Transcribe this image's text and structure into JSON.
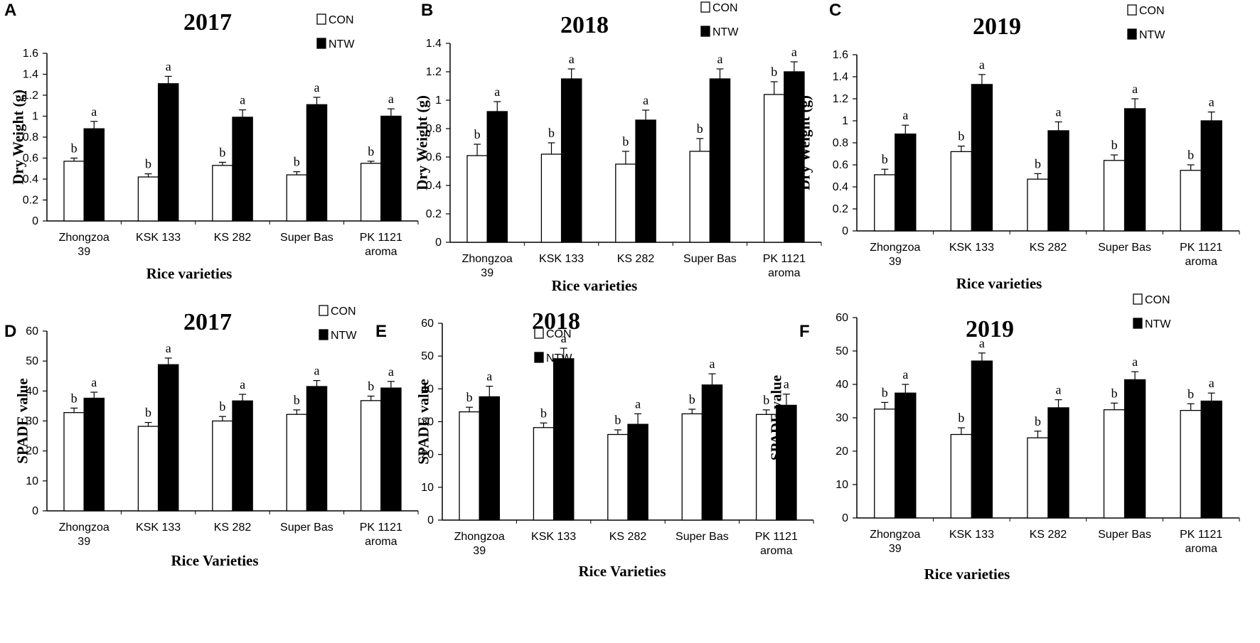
{
  "chart_data": [
    {
      "panel": "A",
      "type": "bar",
      "title": "2017",
      "xlabel": "Rice varieties",
      "ylabel": "Dry Weight (g)",
      "ylim": [
        0,
        1.6
      ],
      "yticks": [
        "0",
        "0.2",
        "0.4",
        "0.6",
        "0.8",
        "1",
        "1.2",
        "1.4",
        "1.6"
      ],
      "categories": [
        [
          "Zhongzoa",
          "39"
        ],
        [
          "KSK 133"
        ],
        [
          "KS 282"
        ],
        [
          "Super Bas"
        ],
        [
          "PK 1121",
          "aroma"
        ]
      ],
      "series": [
        {
          "name": "CON",
          "color": "#ffffff",
          "values": [
            0.57,
            0.42,
            0.53,
            0.44,
            0.55
          ],
          "errors": [
            0.03,
            0.03,
            0.03,
            0.03,
            0.02
          ],
          "labels": [
            "b",
            "b",
            "b",
            "b",
            "b"
          ]
        },
        {
          "name": "NTW",
          "color": "#000000",
          "values": [
            0.88,
            1.31,
            0.99,
            1.11,
            1.0
          ],
          "errors": [
            0.07,
            0.07,
            0.07,
            0.07,
            0.07
          ],
          "labels": [
            "a",
            "a",
            "a",
            "a",
            "a"
          ]
        }
      ],
      "legend_position": "top-right"
    },
    {
      "panel": "B",
      "type": "bar",
      "title": "2018",
      "xlabel": "Rice varieties",
      "ylabel": "Dry Weight (g)",
      "ylim": [
        0,
        1.4
      ],
      "yticks": [
        "0",
        "0.2",
        "0.4",
        "0.6",
        "0.8",
        "1",
        "1.2",
        "1.4"
      ],
      "categories": [
        [
          "Zhongzoa",
          "39"
        ],
        [
          "KSK 133"
        ],
        [
          "KS 282"
        ],
        [
          "Super Bas"
        ],
        [
          "PK 1121",
          "aroma"
        ]
      ],
      "series": [
        {
          "name": "CON",
          "color": "#ffffff",
          "values": [
            0.61,
            0.62,
            0.55,
            0.64,
            1.04
          ],
          "errors": [
            0.08,
            0.08,
            0.09,
            0.09,
            0.09
          ],
          "labels": [
            "b",
            "b",
            "b",
            "b",
            "b"
          ]
        },
        {
          "name": "NTW",
          "color": "#000000",
          "values": [
            0.92,
            1.15,
            0.86,
            1.15,
            1.2
          ],
          "errors": [
            0.07,
            0.07,
            0.07,
            0.07,
            0.07
          ],
          "labels": [
            "a",
            "a",
            "a",
            "a",
            "a"
          ]
        }
      ],
      "legend_position": "top-right"
    },
    {
      "panel": "C",
      "type": "bar",
      "title": "2019",
      "xlabel": "Rice varieties",
      "ylabel": "Dry Weight (g)",
      "ylim": [
        0,
        1.6
      ],
      "yticks": [
        "0",
        "0.2",
        "0.4",
        "0.6",
        "0.8",
        "1",
        "1.2",
        "1.4",
        "1.6"
      ],
      "categories": [
        [
          "Zhongzoa",
          "39"
        ],
        [
          "KSK 133"
        ],
        [
          "KS 282"
        ],
        [
          "Super Bas"
        ],
        [
          "PK 1121",
          "aroma"
        ]
      ],
      "series": [
        {
          "name": "CON",
          "color": "#ffffff",
          "values": [
            0.51,
            0.72,
            0.47,
            0.64,
            0.55
          ],
          "errors": [
            0.05,
            0.05,
            0.05,
            0.05,
            0.05
          ],
          "labels": [
            "b",
            "b",
            "b",
            "b",
            "b"
          ]
        },
        {
          "name": "NTW",
          "color": "#000000",
          "values": [
            0.88,
            1.33,
            0.91,
            1.11,
            1.0
          ],
          "errors": [
            0.08,
            0.09,
            0.08,
            0.09,
            0.08
          ],
          "labels": [
            "a",
            "a",
            "a",
            "a",
            "a"
          ]
        }
      ],
      "legend_position": "top-right"
    },
    {
      "panel": "D",
      "type": "bar",
      "title": "2017",
      "xlabel": "Rice Varieties",
      "ylabel": "SPADE value",
      "ylim": [
        0,
        60
      ],
      "yticks": [
        "0",
        "10",
        "20",
        "30",
        "40",
        "50",
        "60"
      ],
      "categories": [
        [
          "Zhongzoa",
          "39"
        ],
        [
          "KSK 133"
        ],
        [
          "KS 282"
        ],
        [
          "Super Bas"
        ],
        [
          "PK 1121",
          "aroma"
        ]
      ],
      "series": [
        {
          "name": "CON",
          "color": "#ffffff",
          "values": [
            32.8,
            28.2,
            30.0,
            32.2,
            36.8
          ],
          "errors": [
            1.5,
            1.3,
            1.5,
            1.5,
            1.5
          ],
          "labels": [
            "b",
            "b",
            "b",
            "b",
            "b"
          ]
        },
        {
          "name": "NTW",
          "color": "#000000",
          "values": [
            37.6,
            48.8,
            36.7,
            41.5,
            41.0
          ],
          "errors": [
            2.0,
            2.2,
            2.2,
            2.0,
            2.2
          ],
          "labels": [
            "a",
            "a",
            "a",
            "a",
            "a"
          ]
        }
      ],
      "legend_position": "top-right"
    },
    {
      "panel": "E",
      "type": "bar",
      "title": "2018",
      "xlabel": "Rice Varieties",
      "ylabel": "SPADE value",
      "ylim": [
        0,
        60
      ],
      "yticks": [
        "0",
        "10",
        "20",
        "30",
        "40",
        "50",
        "60"
      ],
      "categories": [
        [
          "Zhongzoa",
          "39"
        ],
        [
          "KSK 133"
        ],
        [
          "KS 282"
        ],
        [
          "Super Bas"
        ],
        [
          "PK 1121",
          "aroma"
        ]
      ],
      "series": [
        {
          "name": "CON",
          "color": "#ffffff",
          "values": [
            33.0,
            28.2,
            26.1,
            32.4,
            32.2
          ],
          "errors": [
            1.4,
            1.4,
            1.4,
            1.4,
            1.4
          ],
          "labels": [
            "b",
            "b",
            "b",
            "b",
            "b"
          ]
        },
        {
          "name": "NTW",
          "color": "#000000",
          "values": [
            37.6,
            49.2,
            29.2,
            41.2,
            35.0
          ],
          "errors": [
            3.2,
            3.2,
            3.2,
            3.4,
            3.4
          ],
          "labels": [
            "a",
            "a",
            "a",
            "a",
            "a"
          ]
        }
      ],
      "legend_position": "top-right"
    },
    {
      "panel": "F",
      "type": "bar",
      "title": "2019",
      "xlabel": "Rice varieties",
      "ylabel": "SPADE value",
      "ylim": [
        0,
        60
      ],
      "yticks": [
        "0",
        "10",
        "20",
        "30",
        "40",
        "50",
        "60"
      ],
      "categories": [
        [
          "Zhongzoa",
          "39"
        ],
        [
          "KSK 133"
        ],
        [
          "KS 282"
        ],
        [
          "Super Bas"
        ],
        [
          "PK 1121",
          "aroma"
        ]
      ],
      "series": [
        {
          "name": "CON",
          "color": "#ffffff",
          "values": [
            32.6,
            25.0,
            24.0,
            32.4,
            32.2
          ],
          "errors": [
            2.0,
            2.0,
            2.0,
            2.0,
            2.0
          ],
          "labels": [
            "b",
            "b",
            "b",
            "b",
            "b"
          ]
        },
        {
          "name": "NTW",
          "color": "#000000",
          "values": [
            37.4,
            47.0,
            33.0,
            41.4,
            35.0
          ],
          "errors": [
            2.6,
            2.4,
            2.4,
            2.4,
            2.4
          ],
          "labels": [
            "a",
            "a",
            "a",
            "a",
            "a"
          ]
        }
      ],
      "legend_position": "top-right"
    }
  ]
}
